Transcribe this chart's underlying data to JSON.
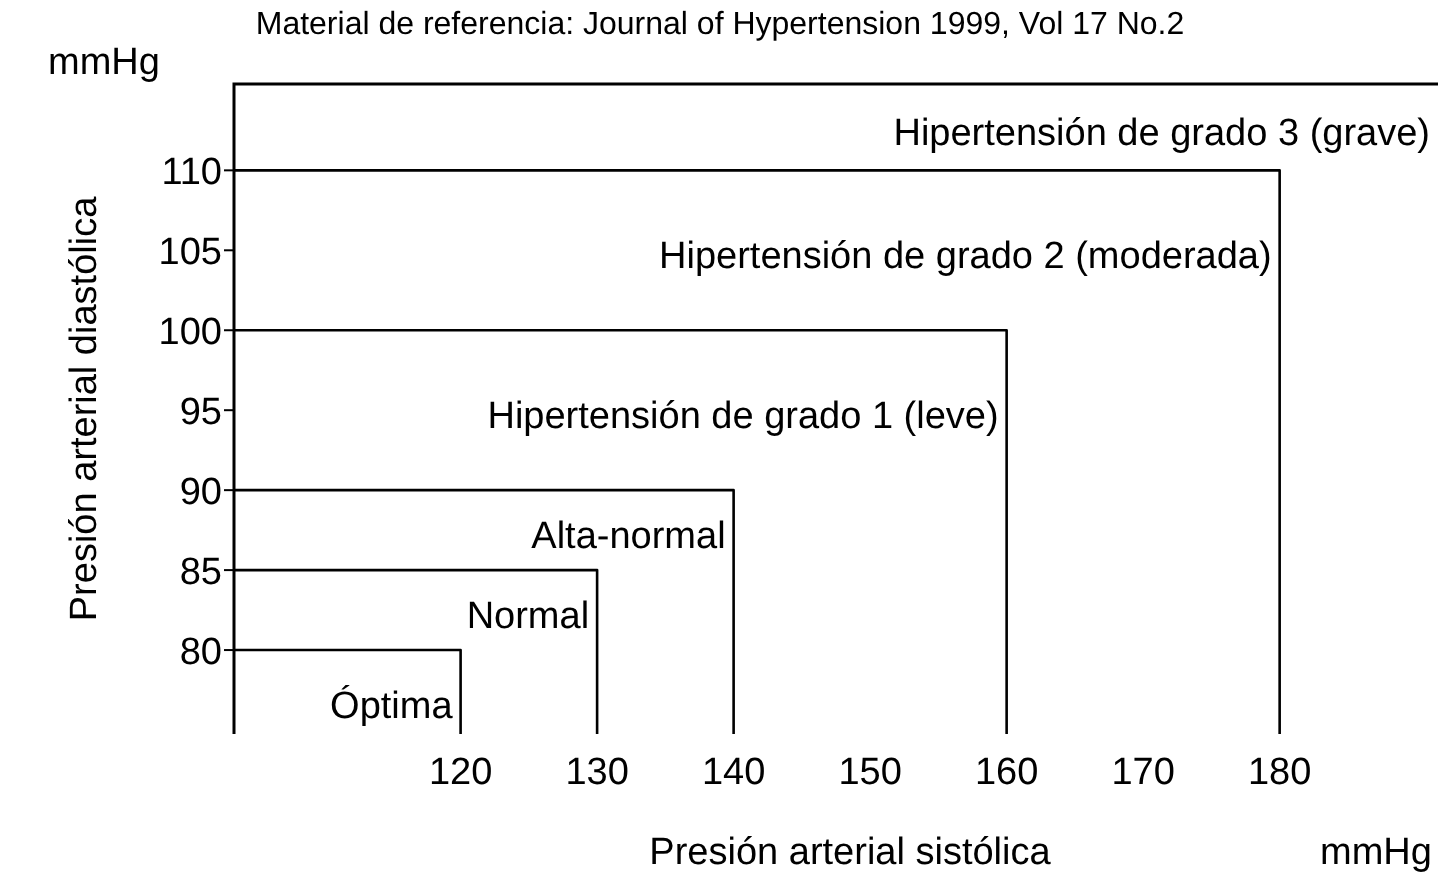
{
  "chart_data": {
    "type": "line",
    "title": "Material de referencia: Journal of Hypertension 1999, Vol 17 No.2",
    "xlabel": "Presión arterial sistólica",
    "ylabel": "Presión arterial diastólica",
    "annotations": [
      "mmHg",
      "mmHg",
      "Hipertensión de grado 3 (grave)"
    ],
    "series": [
      {
        "name": "Óptima",
        "color": "#000000",
        "x": [
          103.4,
          120,
          120
        ],
        "values": [
          80,
          80,
          74.75
        ]
      },
      {
        "name": "Normal",
        "color": "#000000",
        "x": [
          103.4,
          130,
          130
        ],
        "values": [
          85,
          85,
          74.75
        ]
      },
      {
        "name": "Alta-normal",
        "color": "#000000",
        "x": [
          103.4,
          140,
          140
        ],
        "values": [
          90,
          90,
          74.75
        ]
      },
      {
        "name": "Hipertensión de grado 1 (leve)",
        "color": "#000000",
        "x": [
          103.4,
          160,
          160
        ],
        "values": [
          100,
          100,
          74.75
        ]
      },
      {
        "name": "Hipertensión de grado 2 (moderada)",
        "color": "#000000",
        "x": [
          103.4,
          180,
          180
        ],
        "values": [
          110,
          110,
          74.75
        ]
      }
    ],
    "xlim": [
      103.4,
      191.6
    ],
    "ylim": [
      74.75,
      115.4
    ],
    "xticks": [
      120,
      130,
      140,
      150,
      160,
      170,
      180
    ],
    "yticks": [
      80,
      85,
      90,
      95,
      100,
      105,
      110
    ]
  }
}
